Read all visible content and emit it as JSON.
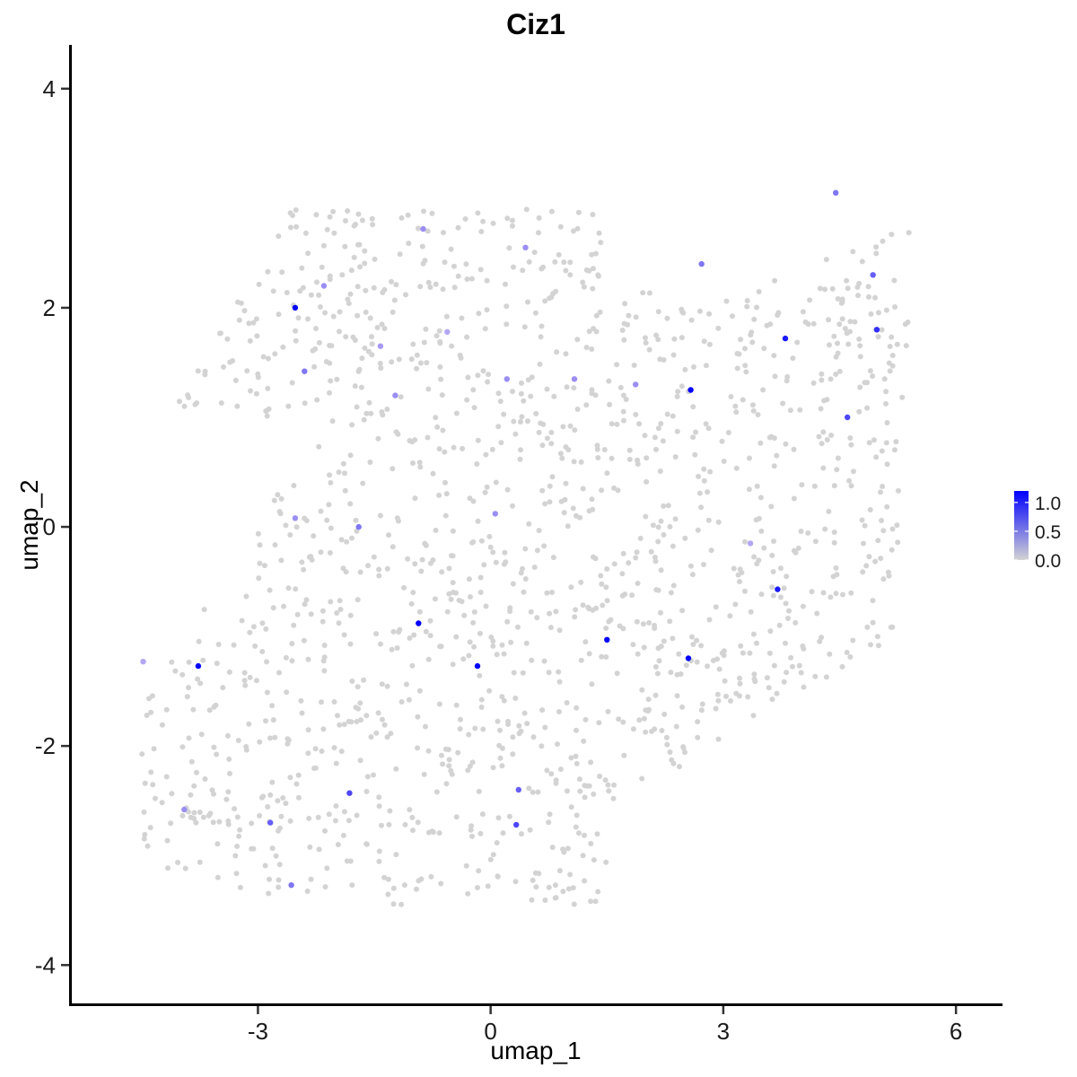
{
  "chart_data": {
    "type": "scatter",
    "title": "Ciz1",
    "xlabel": "umap_1",
    "ylabel": "umap_2",
    "xlim": [
      -5.4,
      6.6
    ],
    "ylim": [
      -4.35,
      4.4
    ],
    "x_ticks": [
      -3,
      0,
      3,
      6
    ],
    "x_tick_labels": [
      "-3",
      "0",
      "3",
      "6"
    ],
    "y_ticks": [
      -4,
      -2,
      0,
      2,
      4
    ],
    "y_tick_labels": [
      "-4",
      "-2",
      "0",
      "2",
      "4"
    ],
    "grid": false,
    "legend": {
      "position": "right",
      "type": "colorbar",
      "range": [
        0,
        1.2
      ],
      "ticks": [
        0.0,
        0.5,
        1.0
      ],
      "tick_labels": [
        "0.0",
        "0.5",
        "1.0"
      ]
    },
    "color_low": "#d3d3d3",
    "color_high": "#0000ff",
    "highlighted_points": [
      {
        "x": -2.52,
        "y": 2.0,
        "v": 1.2
      },
      {
        "x": -0.87,
        "y": 2.72,
        "v": 0.6
      },
      {
        "x": -2.15,
        "y": 2.2,
        "v": 0.6
      },
      {
        "x": -1.42,
        "y": 1.65,
        "v": 0.55
      },
      {
        "x": 1.87,
        "y": 1.3,
        "v": 0.6
      },
      {
        "x": 2.58,
        "y": 1.25,
        "v": 1.2
      },
      {
        "x": 3.8,
        "y": 1.72,
        "v": 1.1
      },
      {
        "x": 4.98,
        "y": 1.8,
        "v": 1.0
      },
      {
        "x": 4.6,
        "y": 1.0,
        "v": 0.9
      },
      {
        "x": -0.93,
        "y": -0.88,
        "v": 1.2
      },
      {
        "x": -0.17,
        "y": -1.27,
        "v": 1.2
      },
      {
        "x": 1.5,
        "y": -1.03,
        "v": 1.2
      },
      {
        "x": 2.55,
        "y": -1.2,
        "v": 1.2
      },
      {
        "x": 3.7,
        "y": -0.57,
        "v": 1.1
      },
      {
        "x": -3.77,
        "y": -1.27,
        "v": 1.2
      },
      {
        "x": -2.4,
        "y": 1.42,
        "v": 0.7
      },
      {
        "x": -1.82,
        "y": -2.43,
        "v": 0.9
      },
      {
        "x": -2.84,
        "y": -2.7,
        "v": 0.8
      },
      {
        "x": 0.33,
        "y": -2.72,
        "v": 0.9
      },
      {
        "x": 0.36,
        "y": -2.4,
        "v": 0.8
      },
      {
        "x": -2.57,
        "y": -3.27,
        "v": 0.7
      },
      {
        "x": -3.95,
        "y": -2.58,
        "v": 0.6
      },
      {
        "x": 4.45,
        "y": 3.05,
        "v": 0.7
      },
      {
        "x": 4.93,
        "y": 2.3,
        "v": 0.8
      },
      {
        "x": 2.72,
        "y": 2.4,
        "v": 0.7
      },
      {
        "x": 0.21,
        "y": 1.35,
        "v": 0.6
      },
      {
        "x": -1.23,
        "y": 1.2,
        "v": 0.6
      },
      {
        "x": -2.52,
        "y": 0.08,
        "v": 0.6
      },
      {
        "x": -1.7,
        "y": 0.0,
        "v": 0.7
      },
      {
        "x": 1.08,
        "y": 1.35,
        "v": 0.6
      },
      {
        "x": 0.45,
        "y": 2.55,
        "v": 0.6
      },
      {
        "x": -0.56,
        "y": 1.78,
        "v": 0.5
      },
      {
        "x": 3.35,
        "y": -0.15,
        "v": 0.5
      },
      {
        "x": 0.06,
        "y": 0.12,
        "v": 0.6
      },
      {
        "x": -4.48,
        "y": -1.23,
        "v": 0.5
      }
    ]
  }
}
